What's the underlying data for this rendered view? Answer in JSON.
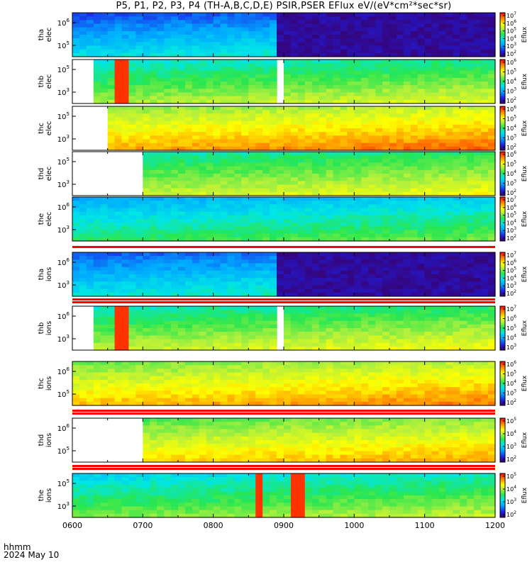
{
  "title": "P5, P1, P2, P3, P4 (TH-A,B,C,D,E) PSIR,PSER EFlux eV/(eV*cm²*sec*sr)",
  "footer": {
    "time_label": "hhmm",
    "date": "2024 May 10"
  },
  "colorbar_label": "Eflux",
  "chart_data": {
    "type": "heatmap",
    "x_axis": {
      "range": [
        "0600",
        "1200"
      ],
      "ticks": [
        "0600",
        "0700",
        "0800",
        "0900",
        "1000",
        "1100",
        "1200"
      ]
    },
    "panels": [
      {
        "label": [
          "tha",
          "elec"
        ],
        "yticks": [
          [
            "10",
            "6"
          ],
          [
            "10",
            "5"
          ]
        ],
        "cbar": [
          "10^7",
          "10^6",
          "10^5",
          "10^4",
          "10^3",
          "10^2"
        ],
        "data_start": "0600",
        "gaps": [],
        "low_after": "0852",
        "spikes": [],
        "base": 0.28
      },
      {
        "label": [
          "thb",
          "elec"
        ],
        "yticks": [
          [
            "10",
            "5"
          ],
          [
            "10",
            "3"
          ]
        ],
        "cbar": [
          "10^6",
          "10^5",
          "10^4",
          "10^3",
          "10^2"
        ],
        "data_start": "0620",
        "gaps": [
          [
            "0855",
            "0902"
          ]
        ],
        "low_after": null,
        "spikes": [
          [
            "0641",
            "0645"
          ]
        ],
        "base": 0.52
      },
      {
        "label": [
          "thc",
          "elec"
        ],
        "yticks": [
          [
            "10",
            "5"
          ],
          [
            "10",
            "3"
          ]
        ],
        "cbar": [
          "10^6",
          "10^5",
          "10^4",
          "10^3",
          "10^2"
        ],
        "data_start": "0630",
        "gaps": [],
        "low_after": null,
        "spikes": [],
        "base": 0.72
      },
      {
        "label": [
          "thd",
          "elec"
        ],
        "yticks": [
          [
            "10",
            "5"
          ],
          [
            "10",
            "3"
          ]
        ],
        "cbar": [
          "10^6",
          "10^5",
          "10^4",
          "10^3",
          "10^2"
        ],
        "data_start": "0658",
        "gaps": [],
        "low_after": null,
        "spikes": [],
        "base": 0.55
      },
      {
        "label": [
          "the",
          "elec"
        ],
        "yticks": [
          [
            "10",
            "6"
          ],
          [
            "10",
            "3"
          ]
        ],
        "cbar": [
          "10^7",
          "10^6",
          "10^5",
          "10^4",
          "10^3",
          "10^2"
        ],
        "data_start": "0600",
        "gaps": [],
        "low_after": null,
        "spikes": [],
        "base": 0.4
      },
      {
        "label": [
          "tha",
          "ions"
        ],
        "yticks": [
          [
            "10",
            "6"
          ],
          [
            "10",
            "3"
          ]
        ],
        "cbar": [
          "10^7",
          "10^6",
          "10^5",
          "10^4",
          "10^3",
          "10^2"
        ],
        "data_start": "0600",
        "gaps": [],
        "low_after": "0852",
        "spikes": [],
        "base": 0.3
      },
      {
        "label": [
          "thb",
          "ions"
        ],
        "yticks": [
          [
            "10",
            "6"
          ],
          [
            "10",
            "3"
          ]
        ],
        "cbar": [
          "10^7",
          "10^6",
          "10^5",
          "10^4",
          "10^3"
        ],
        "data_start": "0620",
        "gaps": [
          [
            "0855",
            "0902"
          ]
        ],
        "low_after": null,
        "spikes": [
          [
            "0641",
            "0645"
          ]
        ],
        "base": 0.55
      },
      {
        "label": [
          "thc",
          "ions"
        ],
        "yticks": [
          [
            "10",
            "6"
          ],
          [
            "10",
            "5"
          ]
        ],
        "cbar": [
          "10^6",
          "10^5",
          "10^4",
          "10^3",
          "10^2"
        ],
        "data_start": "0600",
        "gaps": [],
        "low_after": null,
        "spikes": [],
        "base": 0.7
      },
      {
        "label": [
          "thd",
          "ions"
        ],
        "yticks": [
          [
            "10",
            "6"
          ],
          [
            "10",
            "5"
          ]
        ],
        "cbar": [
          "10^5",
          "10^4",
          "10^3",
          "10^2"
        ],
        "data_start": "0658",
        "gaps": [],
        "low_after": null,
        "spikes": [],
        "base": 0.66
      },
      {
        "label": [
          "the",
          "ions"
        ],
        "yticks": [
          [
            "10",
            "5"
          ],
          [
            "10",
            "3"
          ]
        ],
        "cbar": [
          "10^5",
          "10^4",
          "10^3",
          "10^2"
        ],
        "data_start": "0600",
        "gaps": [],
        "low_after": null,
        "spikes": [
          [
            "0837",
            "0841"
          ],
          [
            "0908",
            "0912"
          ]
        ],
        "base": 0.48
      }
    ]
  }
}
